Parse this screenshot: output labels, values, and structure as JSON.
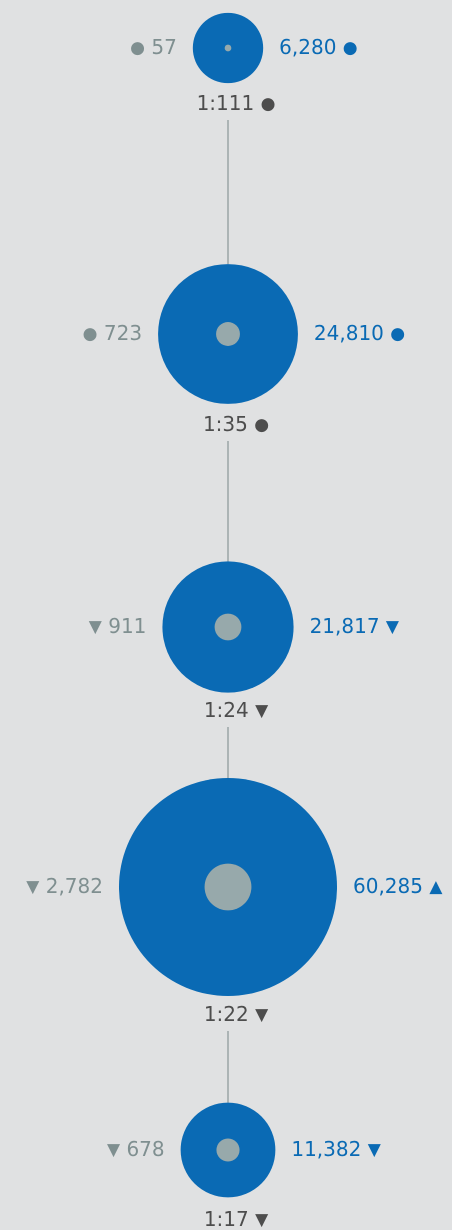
{
  "nodes": [
    {
      "inner": 57,
      "inner_icon": "●",
      "outer": {
        "value": 6280,
        "label": "6,280"
      },
      "outer_icon": "●",
      "ratio": "1:111",
      "ratio_icon": "●"
    },
    {
      "inner": 723,
      "inner_icon": "●",
      "outer": {
        "value": 24810,
        "label": "24,810"
      },
      "outer_icon": "●",
      "ratio": "1:35",
      "ratio_icon": "●"
    },
    {
      "inner": 911,
      "inner_icon": "▼",
      "outer": {
        "value": 21817,
        "label": "21,817"
      },
      "outer_icon": "▼",
      "ratio": "1:24",
      "ratio_icon": "▼"
    },
    {
      "inner": {
        "value": 2782,
        "label": "2,782"
      },
      "inner_icon": "▼",
      "outer": {
        "value": 60285,
        "label": "60,285"
      },
      "outer_icon": "▲",
      "ratio": "1:22",
      "ratio_icon": "▼"
    },
    {
      "inner": 678,
      "inner_icon": "▼",
      "outer": {
        "value": 11382,
        "label": "11,382"
      },
      "outer_icon": "▼",
      "ratio": "1:17",
      "ratio_icon": "▼"
    }
  ]
}
